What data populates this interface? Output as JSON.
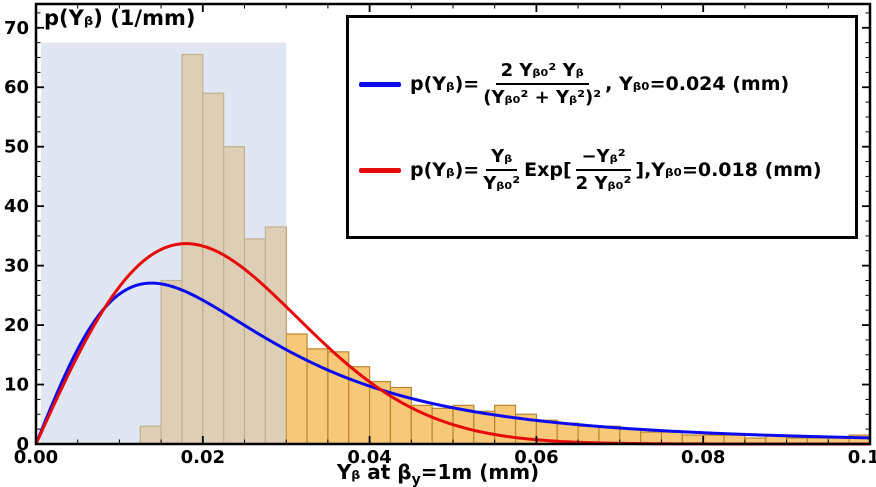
{
  "figure": {
    "ylabel": "p(Yᵦ)   (1/mm)",
    "xlabel_pre": "Yᵦ at β",
    "xlabel_sub": "y",
    "xlabel_post": "=1m (mm)"
  },
  "legend": {
    "row1": {
      "lhs": "p(Yᵦ)=",
      "num": "2 Yᵦ₀² Yᵦ",
      "den": "(Yᵦ₀² + Yᵦ²)²",
      "suffix": ",  Yᵦ₀=0.024  (mm)"
    },
    "row2": {
      "lhs": "p(Yᵦ)=",
      "f1num": "Yᵦ",
      "f1den": "Yᵦ₀²",
      "mid": "Exp[",
      "f2num": "−Yᵦ²",
      "f2den": "2 Yᵦ₀²",
      "close": "],",
      "suffix": " Yᵦ₀=0.018 (mm)"
    }
  },
  "chart_data": {
    "type": "histogram+line",
    "title": "",
    "xlabel": "Y_beta at beta_y = 1m (mm)",
    "ylabel": "p(Y_beta) (1/mm)",
    "x_range": [
      0,
      0.1
    ],
    "y_range": [
      0,
      74
    ],
    "grid": false,
    "legend_position": "top-right",
    "x_ticks": {
      "major": [
        0,
        0.02,
        0.04,
        0.06,
        0.08,
        0.1
      ],
      "labels": [
        "0.00",
        "0.02",
        "0.04",
        "0.06",
        "0.08",
        "0.10"
      ],
      "minor_step": 0.005
    },
    "y_ticks": {
      "major": [
        0,
        10,
        20,
        30,
        40,
        50,
        60,
        70
      ],
      "labels": [
        "0",
        "10",
        "20",
        "30",
        "40",
        "50",
        "60",
        "70"
      ],
      "minor_step": 2.5
    },
    "highlight_region": {
      "x0": 0.0006,
      "x1": 0.03,
      "y0": 0,
      "y1": 67.5,
      "color": "#C9D4E8",
      "opacity": 0.55
    },
    "histogram": {
      "first_bin": 0.0125,
      "bin_width": 0.0025,
      "heights": [
        3,
        27.5,
        65.5,
        59,
        50,
        34.5,
        36.5,
        18.5,
        16,
        15.5,
        13,
        10.5,
        9.5,
        6.5,
        6,
        6.5,
        5.5,
        6.5,
        5,
        4,
        3.5,
        3,
        3,
        2.5,
        2,
        2,
        1.5,
        1.5,
        1.5,
        1,
        1.5,
        1,
        1,
        1,
        1.5
      ],
      "fill": "#F7C878",
      "edge": "#B8872E"
    },
    "series": [
      {
        "name": "p(Y) = 2 Y0^2 Y / (Y0^2 + Y^2)^2",
        "type": "lorentzian",
        "Y_beta0": 0.024,
        "color": "#0B0BEE",
        "width": 3
      },
      {
        "name": "p(Y) = (Y / Y0^2) Exp[-Y^2 / (2 Y0^2)]",
        "type": "rayleigh",
        "Y_beta0": 0.018,
        "color": "#E60A0A",
        "width": 3
      }
    ],
    "frame_color": "#000000"
  }
}
